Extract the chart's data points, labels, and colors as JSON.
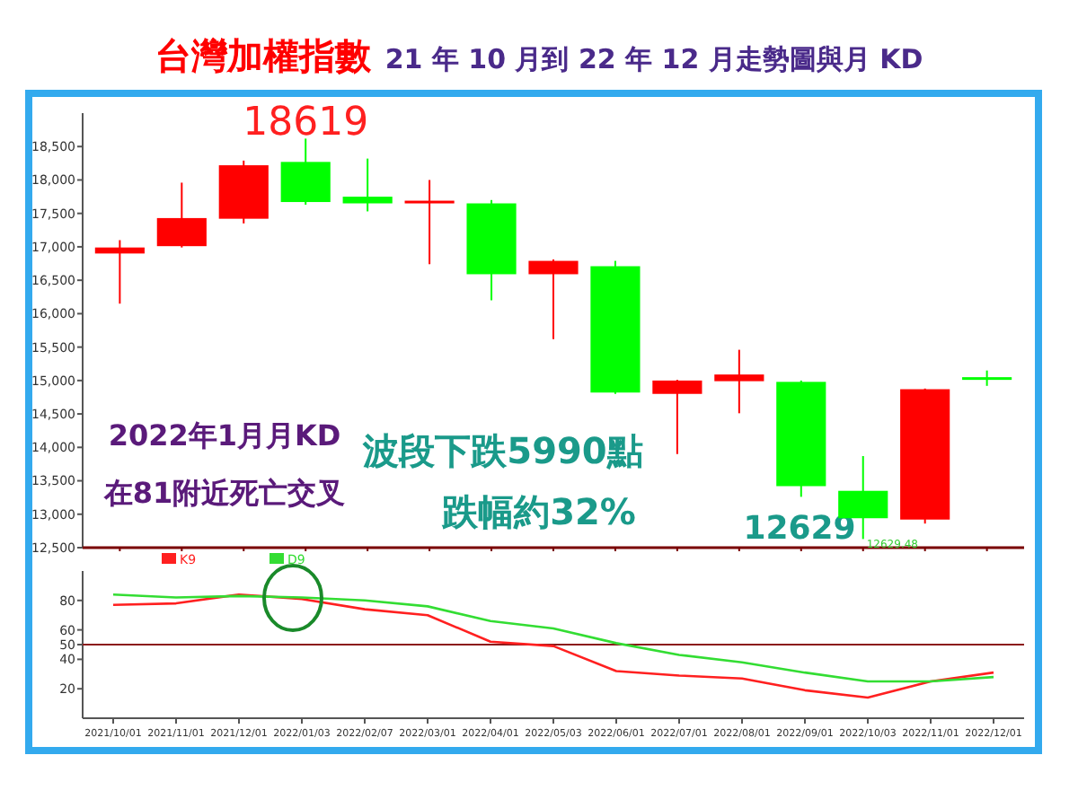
{
  "chart_data": [
    {
      "type": "candlestick",
      "title": "台灣加權指數",
      "subtitle": "21 年 10 月到 22 年 12 月走勢圖與月 KD",
      "categories": [
        "2021/10/01",
        "2021/11/01",
        "2021/12/01",
        "2022/01/03",
        "2022/02/07",
        "2022/03/01",
        "2022/04/01",
        "2022/05/03",
        "2022/06/01",
        "2022/07/01",
        "2022/08/01",
        "2022/09/01",
        "2022/10/03",
        "2022/11/01",
        "2022/12/01"
      ],
      "ohlc": [
        [
          16900,
          17100,
          16150,
          16990
        ],
        [
          17010,
          17960,
          16990,
          17430
        ],
        [
          17420,
          18290,
          17350,
          18220
        ],
        [
          18270,
          18619,
          17630,
          17670
        ],
        [
          17750,
          18320,
          17530,
          17650
        ],
        [
          17660,
          18000,
          16740,
          17690
        ],
        [
          17650,
          17700,
          16200,
          16590
        ],
        [
          16590,
          16810,
          15620,
          16790
        ],
        [
          16710,
          16790,
          14800,
          14820
        ],
        [
          14800,
          15010,
          13900,
          15000
        ],
        [
          14990,
          15460,
          14510,
          15090
        ],
        [
          14980,
          15000,
          13260,
          13420
        ],
        [
          13350,
          13870,
          12629,
          12940
        ],
        [
          12920,
          14880,
          12860,
          14870
        ],
        [
          15050,
          15150,
          14920,
          15040
        ]
      ],
      "ylim": [
        12500,
        19000
      ],
      "yticks": [
        {
          "value": 12500,
          "label": "12,500"
        },
        {
          "value": 13000,
          "label": "13,000"
        },
        {
          "value": 13500,
          "label": "13,500"
        },
        {
          "value": 14000,
          "label": "14,000"
        },
        {
          "value": 14500,
          "label": "14,500"
        },
        {
          "value": 15000,
          "label": "15,000"
        },
        {
          "value": 15500,
          "label": "15,500"
        },
        {
          "value": 16000,
          "label": "16,000"
        },
        {
          "value": 16500,
          "label": "16,500"
        },
        {
          "value": 17000,
          "label": "17,000"
        },
        {
          "value": 17500,
          "label": "17,500"
        },
        {
          "value": 18000,
          "label": "18,000"
        },
        {
          "value": 18500,
          "label": "18,500"
        }
      ],
      "tick_labels": "y",
      "annotations": [
        {
          "text": "18619",
          "x": "2022/01/03",
          "y": 18619
        },
        {
          "text": "12629.48",
          "x": "2022/10/03",
          "y": 12629
        },
        "12629",
        "2022年1月月KD",
        "在81附近死亡交叉",
        "波段下跌5990點",
        "跌幅約32%"
      ]
    },
    {
      "type": "line",
      "categories": [
        "2021/10/01",
        "2021/11/01",
        "2021/12/01",
        "2022/01/03",
        "2022/02/07",
        "2022/03/01",
        "2022/04/01",
        "2022/05/03",
        "2022/06/01",
        "2022/07/01",
        "2022/08/01",
        "2022/09/01",
        "2022/10/03",
        "2022/11/01",
        "2022/12/01"
      ],
      "series": [
        {
          "name": "K9",
          "color": "#ff2020",
          "values": [
            77,
            78,
            84,
            81,
            74,
            70,
            52,
            49,
            32,
            29,
            27,
            19,
            14,
            25,
            31
          ]
        },
        {
          "name": "D9",
          "color": "#33dd33",
          "values": [
            84,
            82,
            83,
            82,
            80,
            76,
            66,
            61,
            51,
            43,
            38,
            31,
            25,
            25,
            28
          ]
        }
      ],
      "ylim": [
        0,
        100
      ],
      "yticks": [
        20,
        40,
        50,
        60,
        80
      ],
      "ref_lines": [
        {
          "axis": "y",
          "value": 50,
          "color": "#8b1a1a"
        }
      ],
      "legend": "top left"
    }
  ]
}
